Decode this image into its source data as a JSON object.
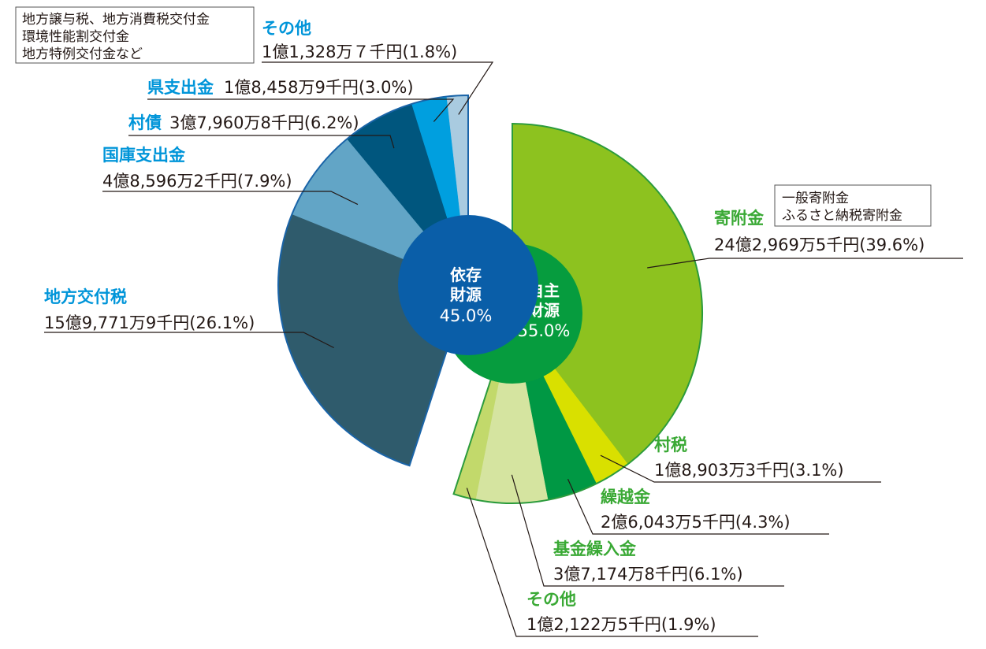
{
  "chart_data": {
    "type": "pie",
    "groups": [
      {
        "name": "自主財源",
        "percent": "55.0%",
        "percent_value": 55.0,
        "color": "#069c3e"
      },
      {
        "name": "依存財源",
        "percent": "45.0%",
        "percent_value": 45.0,
        "color": "#0a5ea8"
      }
    ],
    "slices": [
      {
        "group": 0,
        "name": "寄附金",
        "amount": "24億2,969万5千円",
        "percent": "(39.6%)",
        "value": 39.6,
        "color": "#8dc21f",
        "name_color": "#3aa935",
        "note": [
          "一般寄附金",
          "ふるさと納税寄附金"
        ]
      },
      {
        "group": 0,
        "name": "村税",
        "amount": "1億8,903万3千円",
        "percent": "(3.1%)",
        "value": 3.1,
        "color": "#d9e000",
        "name_color": "#3aa935"
      },
      {
        "group": 0,
        "name": "繰越金",
        "amount": "2億6,043万5千円",
        "percent": "(4.3%)",
        "value": 4.3,
        "color": "#009844",
        "name_color": "#3aa935"
      },
      {
        "group": 0,
        "name": "基金繰入金",
        "amount": "3億7,174万8千円",
        "percent": "(6.1%)",
        "value": 6.1,
        "color": "#d5e4a0",
        "name_color": "#3aa935"
      },
      {
        "group": 0,
        "name": "その他",
        "amount": "1億2,122万5千円",
        "percent": "(1.9%)",
        "value": 1.9,
        "color": "#c2d96b",
        "name_color": "#3aa935"
      },
      {
        "group": 1,
        "name": "地方交付税",
        "amount": "15億9,771万9千円",
        "percent": "(26.1%)",
        "value": 26.1,
        "color": "#2f5b6c",
        "name_color": "#0095d9"
      },
      {
        "group": 1,
        "name": "国庫支出金",
        "amount": "4億8,596万2千円",
        "percent": "(7.9%)",
        "value": 7.9,
        "color": "#62a5c6",
        "name_color": "#0095d9"
      },
      {
        "group": 1,
        "name": "村債",
        "amount": "3億7,960万8千円",
        "percent": "(6.2%)",
        "value": 6.2,
        "color": "#00567e",
        "name_color": "#0095d9"
      },
      {
        "group": 1,
        "name": "県支出金",
        "amount": "1億8,458万9千円",
        "percent": "(3.0%)",
        "value": 3.0,
        "color": "#009fdf",
        "name_color": "#0095d9"
      },
      {
        "group": 1,
        "name": "その他",
        "amount": "1億1,328万７千円",
        "percent": "(1.8%)",
        "value": 1.8,
        "color": "#a9cbe0",
        "name_color": "#0095d9",
        "note": [
          "地方譲与税、地方消費税交付金",
          "環境性能割交付金",
          "地方特例交付金など"
        ]
      }
    ]
  }
}
